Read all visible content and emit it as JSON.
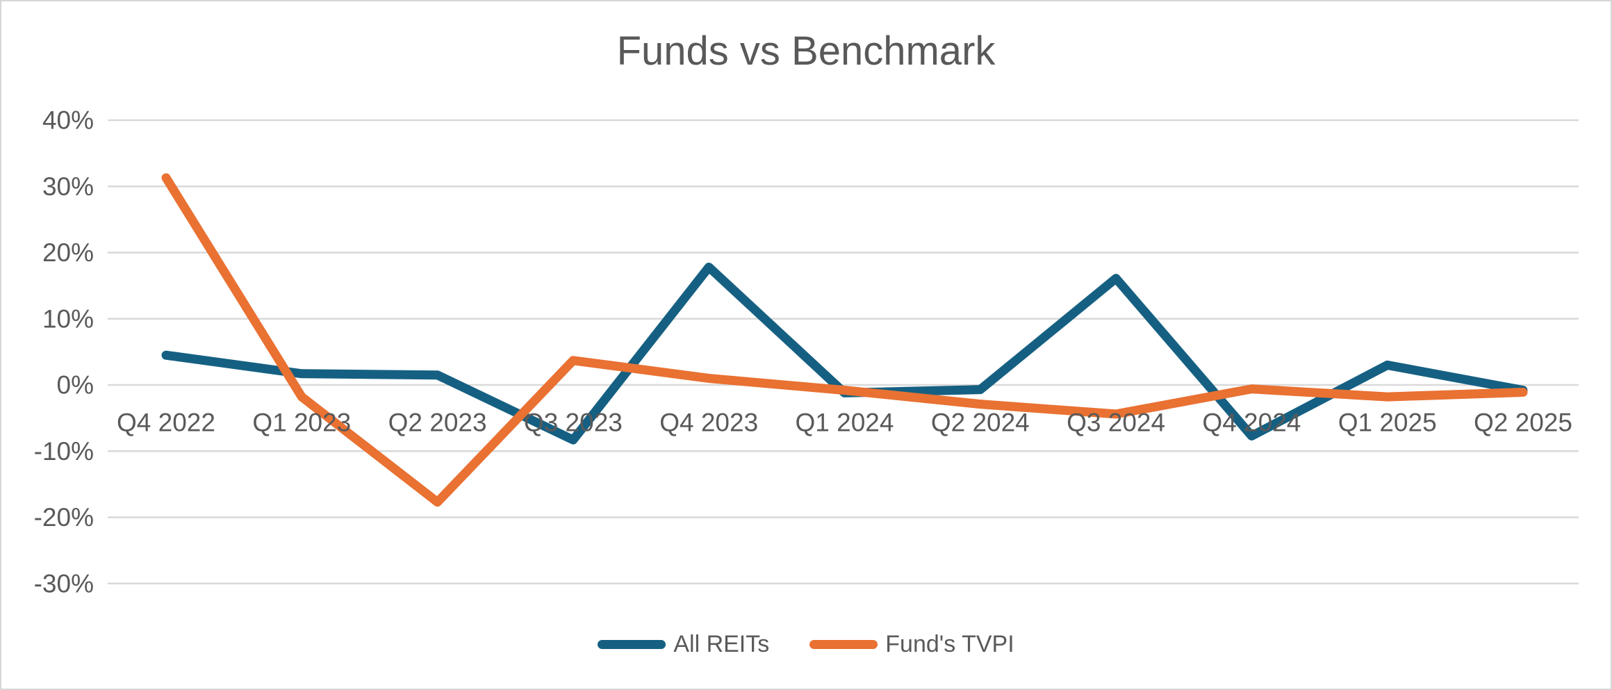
{
  "chart_data": {
    "type": "line",
    "title": "Funds vs Benchmark",
    "xlabel": "",
    "ylabel": "",
    "categories": [
      "Q4 2022",
      "Q1 2023",
      "Q2 2023",
      "Q3 2023",
      "Q4 2023",
      "Q1 2024",
      "Q2 2024",
      "Q3 2024",
      "Q4 2024",
      "Q1 2025",
      "Q2 2025"
    ],
    "series": [
      {
        "name": "All REITs",
        "color": "#156082",
        "values": [
          4.5,
          1.7,
          1.5,
          -8.3,
          17.8,
          -1.2,
          -0.7,
          16.1,
          -7.7,
          3.0,
          -0.8
        ]
      },
      {
        "name": "Fund's TVPI",
        "color": "#E97132",
        "values": [
          31.3,
          -1.8,
          -17.7,
          3.7,
          1.0,
          -0.8,
          -2.9,
          -4.4,
          -0.6,
          -1.8,
          -1.1
        ]
      }
    ],
    "y_ticks": [
      {
        "label": "40%",
        "value": 40
      },
      {
        "label": "30%",
        "value": 30
      },
      {
        "label": "20%",
        "value": 20
      },
      {
        "label": "10%",
        "value": 10
      },
      {
        "label": "0%",
        "value": 0
      },
      {
        "label": "-10%",
        "value": -10
      },
      {
        "label": "-20%",
        "value": -20
      },
      {
        "label": "-30%",
        "value": -30
      }
    ],
    "ylim": [
      -30,
      40
    ],
    "grid": "horizontal",
    "legend_position": "bottom"
  },
  "styles": {
    "text_color": "#595959",
    "gridline_color": "#D9D9D9",
    "frame_border_color": "#D6D6D6",
    "background": "#FFFFFF"
  }
}
